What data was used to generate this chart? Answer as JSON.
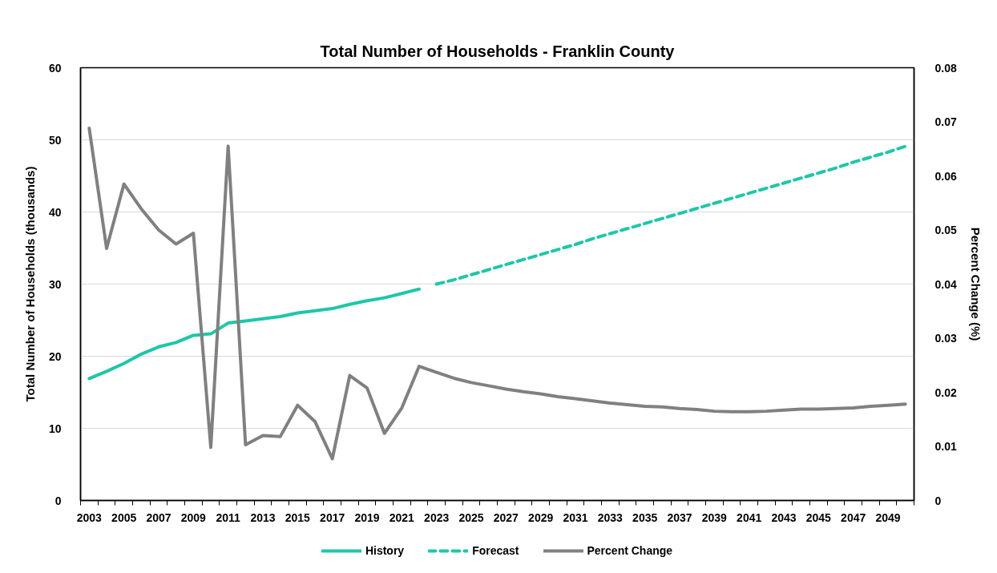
{
  "chart_data": {
    "type": "line",
    "title": "Total Number of Households - Franklin County",
    "ylabel": "Total Number of Households (thousands)",
    "y2label": "Percent Change (%)",
    "categories": [
      "2003",
      null,
      "2005",
      null,
      "2007",
      null,
      "2009",
      null,
      "2011",
      null,
      "2013",
      null,
      "2015",
      null,
      "2017",
      null,
      "2019",
      null,
      "2021",
      null,
      "2023",
      null,
      "2025",
      null,
      "2027",
      null,
      "2029",
      null,
      "2031",
      null,
      "2033",
      null,
      "2035",
      null,
      "2037",
      null,
      "2039",
      null,
      "2041",
      null,
      "2043",
      null,
      "2045",
      null,
      "2047",
      null,
      "2049",
      null
    ],
    "series": [
      {
        "name": "History",
        "color": "#1ec7a8",
        "line_style": "solid",
        "values": [
          16.9,
          17.9,
          19.0,
          20.3,
          21.3,
          21.9,
          22.9,
          23.1,
          24.6,
          24.9,
          25.2,
          25.5,
          26.0,
          26.3,
          26.6,
          27.2,
          27.7,
          28.1,
          28.7,
          29.3,
          null,
          null,
          null,
          null,
          null,
          null,
          null,
          null,
          null,
          null,
          null,
          null,
          null,
          null,
          null,
          null,
          null,
          null,
          null,
          null,
          null,
          null,
          null,
          null,
          null,
          null,
          null,
          null
        ]
      },
      {
        "name": "Forecast",
        "color": "#1ec7a8",
        "line_style": "dashed",
        "values": [
          null,
          null,
          null,
          null,
          null,
          null,
          null,
          null,
          null,
          null,
          null,
          null,
          null,
          null,
          null,
          null,
          null,
          null,
          null,
          null,
          30.0,
          30.6,
          31.3,
          32.0,
          32.7,
          33.4,
          34.1,
          34.8,
          35.5,
          36.3,
          37.0,
          37.7,
          38.4,
          39.1,
          39.8,
          40.5,
          41.2,
          41.9,
          42.6,
          43.3,
          44.0,
          44.7,
          45.4,
          46.1,
          46.9,
          47.6,
          48.3,
          49.1
        ]
      },
      {
        "name": "Percent Change",
        "color": "#808080",
        "line_style": "solid",
        "axis": "y2",
        "values": [
          0.0688,
          0.0466,
          0.0585,
          0.0539,
          0.05,
          0.0474,
          0.0494,
          0.0098,
          0.0655,
          0.0103,
          0.012,
          0.0118,
          0.0176,
          0.0146,
          0.0077,
          0.0231,
          0.0208,
          0.0124,
          0.0171,
          0.0248,
          0.0237,
          0.0226,
          0.0218,
          0.0212,
          0.0206,
          0.0201,
          0.0197,
          0.0192,
          0.0188,
          0.0184,
          0.018,
          0.0177,
          0.0174,
          0.0173,
          0.017,
          0.0168,
          0.0165,
          0.0164,
          0.0164,
          0.0165,
          0.0167,
          0.0169,
          0.0169,
          0.017,
          0.0171,
          0.0174,
          0.0176,
          0.0178
        ]
      }
    ],
    "ylim": [
      0,
      60
    ],
    "yticks": [
      0,
      10,
      20,
      30,
      40,
      50,
      60
    ],
    "y2lim": [
      0,
      0.08
    ],
    "y2ticks": [
      0,
      0.01,
      0.02,
      0.03,
      0.04,
      0.05,
      0.06,
      0.07,
      0.08
    ],
    "grid": "y",
    "legend": "bottom",
    "marker": "none"
  }
}
